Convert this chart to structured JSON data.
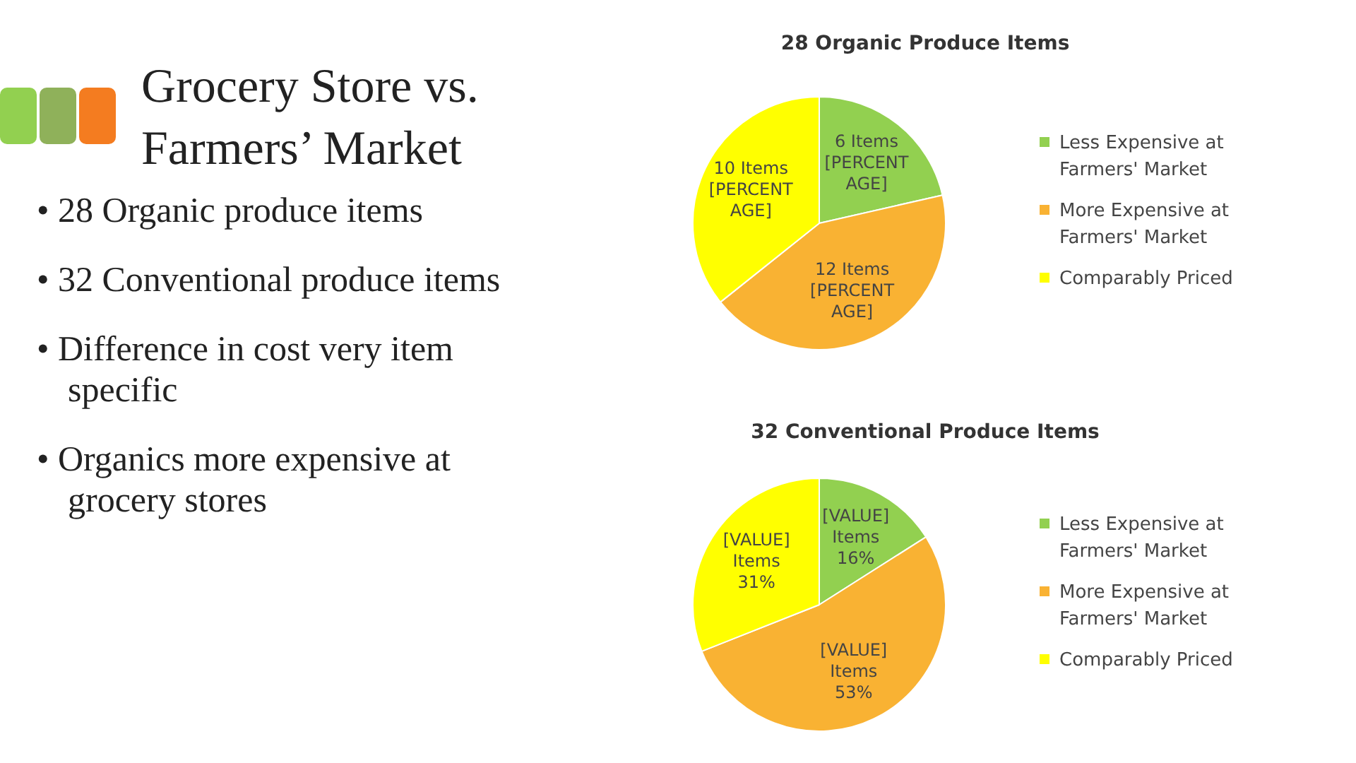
{
  "chart_data": [
    {
      "type": "other",
      "title": "Grocery Store vs. Farmers’ Market",
      "annotations": [
        "• 28 Organic produce items",
        "• 32 Conventional produce items",
        "• Difference in cost very item specific",
        "• Organics more expensive at grocery stores"
      ]
    },
    {
      "type": "pie",
      "title": "28 Organic Produce Items",
      "categories": [
        "Less Expensive at Farmers' Market",
        "More Expensive at Farmers' Market",
        "Comparably Priced"
      ],
      "values": [
        6,
        12,
        10
      ],
      "colors": [
        "#92d050",
        "#f9b233",
        "#ffff00"
      ],
      "value_labels": [
        "6 Items [PERCENTAGE]",
        "12 Items [PERCENTAGE]",
        "10 Items [PERCENTAGE]"
      ],
      "legend": "right"
    },
    {
      "type": "pie",
      "title": "32 Conventional Produce Items",
      "categories": [
        "Less Expensive at Farmers' Market",
        "More Expensive at Farmers' Market",
        "Comparably Priced"
      ],
      "values": [
        16,
        53,
        31
      ],
      "colors": [
        "#92d050",
        "#f9b233",
        "#ffff00"
      ],
      "value_labels": [
        "[VALUE] Items 16%",
        "[VALUE] Items 53%",
        "[VALUE] Items 31%"
      ],
      "legend": "right"
    }
  ]
}
